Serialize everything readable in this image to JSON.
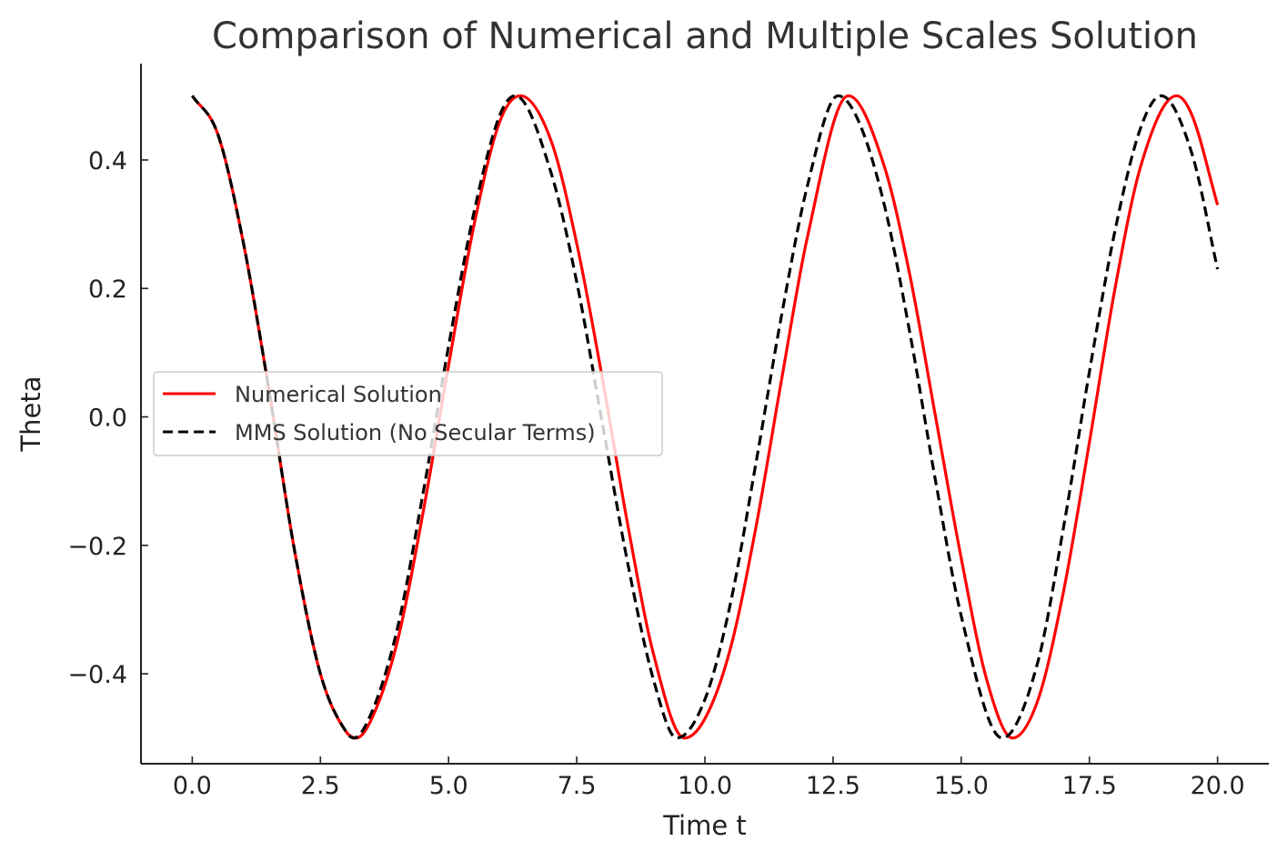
{
  "chart_data": {
    "type": "line",
    "title": "Comparison of Numerical and Multiple Scales Solution",
    "xlabel": "Time t",
    "ylabel": "Theta",
    "xlim": [
      -1.0,
      21.0
    ],
    "ylim": [
      -0.54,
      0.55
    ],
    "xticks": [
      0.0,
      2.5,
      5.0,
      7.5,
      10.0,
      12.5,
      15.0,
      17.5,
      20.0
    ],
    "xtick_labels": [
      "0.0",
      "2.5",
      "5.0",
      "7.5",
      "10.0",
      "12.5",
      "15.0",
      "17.5",
      "20.0"
    ],
    "yticks": [
      0.4,
      0.2,
      0.0,
      -0.2,
      -0.4
    ],
    "ytick_labels": [
      "0.4",
      "0.2",
      "0.0",
      "−0.2",
      "−0.4"
    ],
    "grid": false,
    "legend_position": "center-left",
    "series": [
      {
        "name": "Numerical Solution",
        "color": "#ff0000",
        "style": "solid",
        "x": [
          0.0,
          0.5,
          1.0,
          1.5,
          2.0,
          2.5,
          3.0,
          3.2,
          3.5,
          4.0,
          4.5,
          5.0,
          5.5,
          6.0,
          6.4,
          7.0,
          7.5,
          8.0,
          8.5,
          9.0,
          9.6,
          10.0,
          10.5,
          11.0,
          11.5,
          12.0,
          12.8,
          13.5,
          14.0,
          14.5,
          15.0,
          15.5,
          16.0,
          16.5,
          17.0,
          17.5,
          18.0,
          18.5,
          19.2,
          19.5,
          20.0
        ],
        "y": [
          0.5,
          0.44,
          0.27,
          0.04,
          -0.21,
          -0.4,
          -0.49,
          -0.5,
          -0.47,
          -0.35,
          -0.15,
          0.08,
          0.3,
          0.46,
          0.5,
          0.43,
          0.27,
          0.06,
          -0.17,
          -0.37,
          -0.5,
          -0.47,
          -0.36,
          -0.17,
          0.06,
          0.28,
          0.5,
          0.39,
          0.22,
          0.0,
          -0.22,
          -0.41,
          -0.5,
          -0.44,
          -0.27,
          -0.04,
          0.2,
          0.39,
          0.5,
          0.47,
          0.33
        ]
      },
      {
        "name": "MMS Solution (No Secular Terms)",
        "color": "#000000",
        "style": "dashed",
        "x": [
          0.0,
          0.5,
          1.0,
          1.5,
          2.0,
          2.5,
          3.0,
          3.15,
          3.5,
          4.0,
          4.5,
          5.0,
          5.5,
          6.0,
          6.3,
          7.0,
          7.5,
          8.0,
          8.5,
          9.0,
          9.45,
          10.0,
          10.5,
          11.0,
          11.5,
          12.0,
          12.6,
          13.0,
          13.5,
          14.0,
          14.5,
          15.0,
          15.8,
          16.5,
          17.0,
          17.5,
          18.0,
          18.5,
          18.9,
          19.5,
          20.0
        ],
        "y": [
          0.5,
          0.44,
          0.27,
          0.04,
          -0.21,
          -0.4,
          -0.49,
          -0.5,
          -0.46,
          -0.33,
          -0.12,
          0.11,
          0.32,
          0.47,
          0.5,
          0.38,
          0.21,
          -0.01,
          -0.23,
          -0.41,
          -0.5,
          -0.44,
          -0.29,
          -0.07,
          0.16,
          0.36,
          0.5,
          0.46,
          0.33,
          0.13,
          -0.1,
          -0.31,
          -0.5,
          -0.38,
          -0.17,
          0.07,
          0.29,
          0.45,
          0.5,
          0.41,
          0.23
        ]
      }
    ]
  }
}
